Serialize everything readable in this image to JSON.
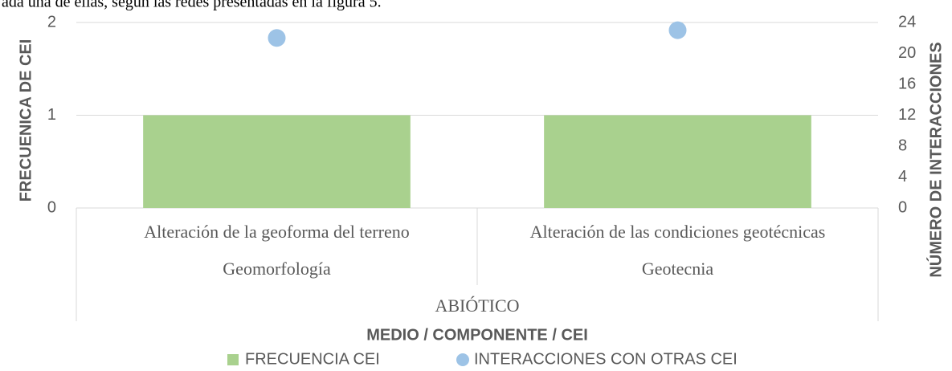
{
  "header_text": "ada una de ellas, según las redes presentadas en la figura 5.",
  "chart_data": {
    "type": "bar",
    "categories": [
      "Alteración de la geoforma del terreno",
      "Alteración de las condiciones geotécnicas"
    ],
    "groups": [
      "Geomorfología",
      "Geotecnia"
    ],
    "top_group": "ABIÓTICO",
    "series": [
      {
        "name": "FRECUENCIA CEI",
        "type": "bar",
        "color": "#a9d18e",
        "values": [
          1,
          1
        ]
      },
      {
        "name": "INTERACCIONES CON OTRAS CEI",
        "type": "scatter",
        "axis": "y2",
        "color": "#9dc3e6",
        "values": [
          22,
          23
        ]
      }
    ],
    "ylabel": "FRECUENICA DE CEI",
    "y2label": "NÚMERO DE INTERACCIONES",
    "xlabel": "MEDIO / COMPONENTE / CEI",
    "ylim": [
      0,
      2
    ],
    "yticks": [
      0,
      1,
      2
    ],
    "y2lim": [
      0,
      24
    ],
    "y2ticks": [
      0,
      4,
      8,
      12,
      16,
      20,
      24
    ],
    "grid": true
  }
}
